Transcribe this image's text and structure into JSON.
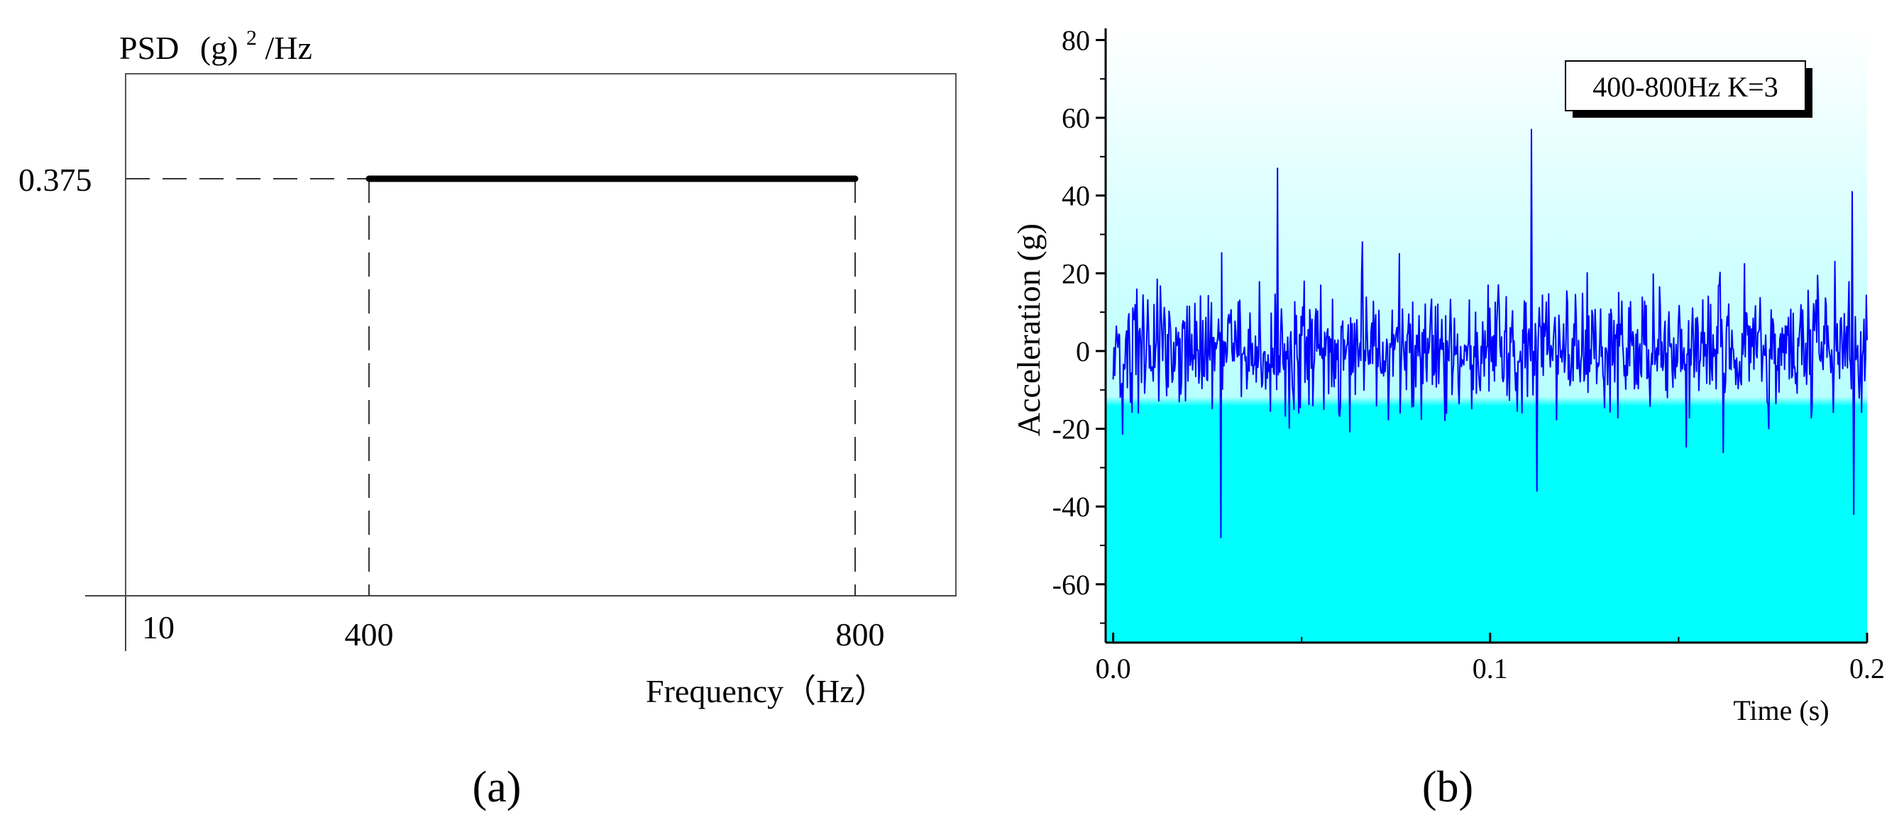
{
  "chart_data": [
    {
      "type": "line",
      "panel_label": "(a)",
      "ylabel_main": "PSD",
      "ylabel_unit_base": "(g)",
      "ylabel_unit_exp": "2",
      "ylabel_unit_tail": "/Hz",
      "xlabel": "Frequency（Hz）",
      "x_tick_labels": [
        "10",
        "400",
        "800"
      ],
      "y_tick_labels": [
        "0.375"
      ],
      "series": [
        {
          "name": "PSD",
          "x": [
            400,
            800
          ],
          "y": [
            0.375,
            0.375
          ]
        }
      ],
      "grid": false
    },
    {
      "type": "line",
      "panel_label": "(b)",
      "legend": "400-800Hz K=3",
      "xlabel": "Time (s)",
      "ylabel": "Acceleration (g)",
      "xlim": [
        -0.002,
        0.2
      ],
      "ylim": [
        -75,
        83
      ],
      "x_ticks": [
        0.0,
        0.1,
        0.2
      ],
      "x_tick_labels": [
        "0.0",
        "0.1",
        "0.2"
      ],
      "y_ticks": [
        -60,
        -40,
        -20,
        0,
        20,
        40,
        60,
        80
      ],
      "y_tick_labels": [
        "-60",
        "-40",
        "-20",
        "0",
        "20",
        "40",
        "60",
        "80"
      ],
      "series": [
        {
          "name": "Acceleration",
          "t_start": 0.0,
          "t_end": 0.2,
          "samples": 960,
          "seed": 3,
          "peaks": [
            {
              "t": 0.0285,
              "v": -48
            },
            {
              "t": 0.0435,
              "v": 47
            },
            {
              "t": 0.111,
              "v": 57
            },
            {
              "t": 0.1125,
              "v": -36
            },
            {
              "t": 0.196,
              "v": 41
            },
            {
              "t": 0.1965,
              "v": -42
            }
          ]
        }
      ],
      "colors": {
        "line": "#0000ff",
        "bg_top": "#ffffff",
        "bg_bottom": "#00ffff"
      },
      "grid": false
    }
  ]
}
